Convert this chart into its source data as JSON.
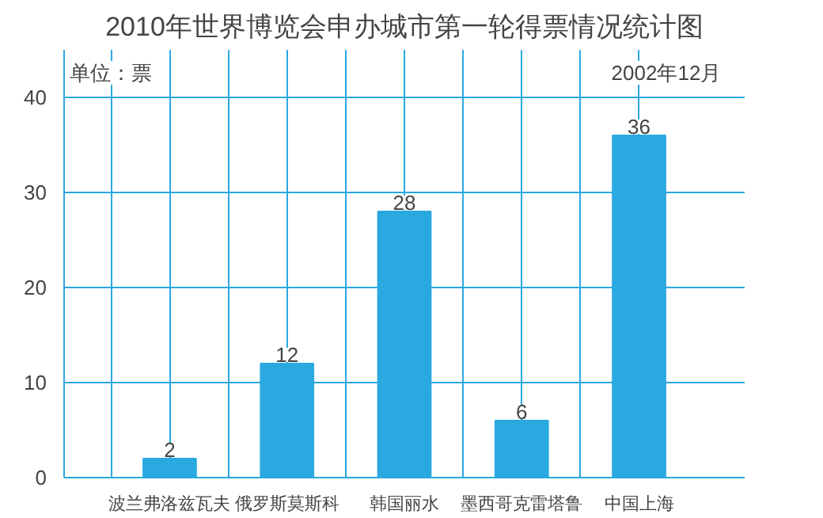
{
  "chart_data": {
    "type": "bar",
    "title": "2010年世界博览会申办城市第一轮得票情况统计图",
    "ylabel": "单位：票",
    "annotations": [
      "2002年12月"
    ],
    "categories": [
      "波兰弗洛兹瓦夫",
      "俄罗斯莫斯科",
      "韩国丽水",
      "墨西哥克雷塔鲁",
      "中国上海"
    ],
    "values": [
      2,
      12,
      28,
      6,
      36
    ],
    "color": "#2aa8e0",
    "ylim": [
      0,
      45
    ],
    "yticks": [
      0,
      10,
      20,
      30,
      40
    ],
    "grid": true,
    "data_labels": true
  }
}
